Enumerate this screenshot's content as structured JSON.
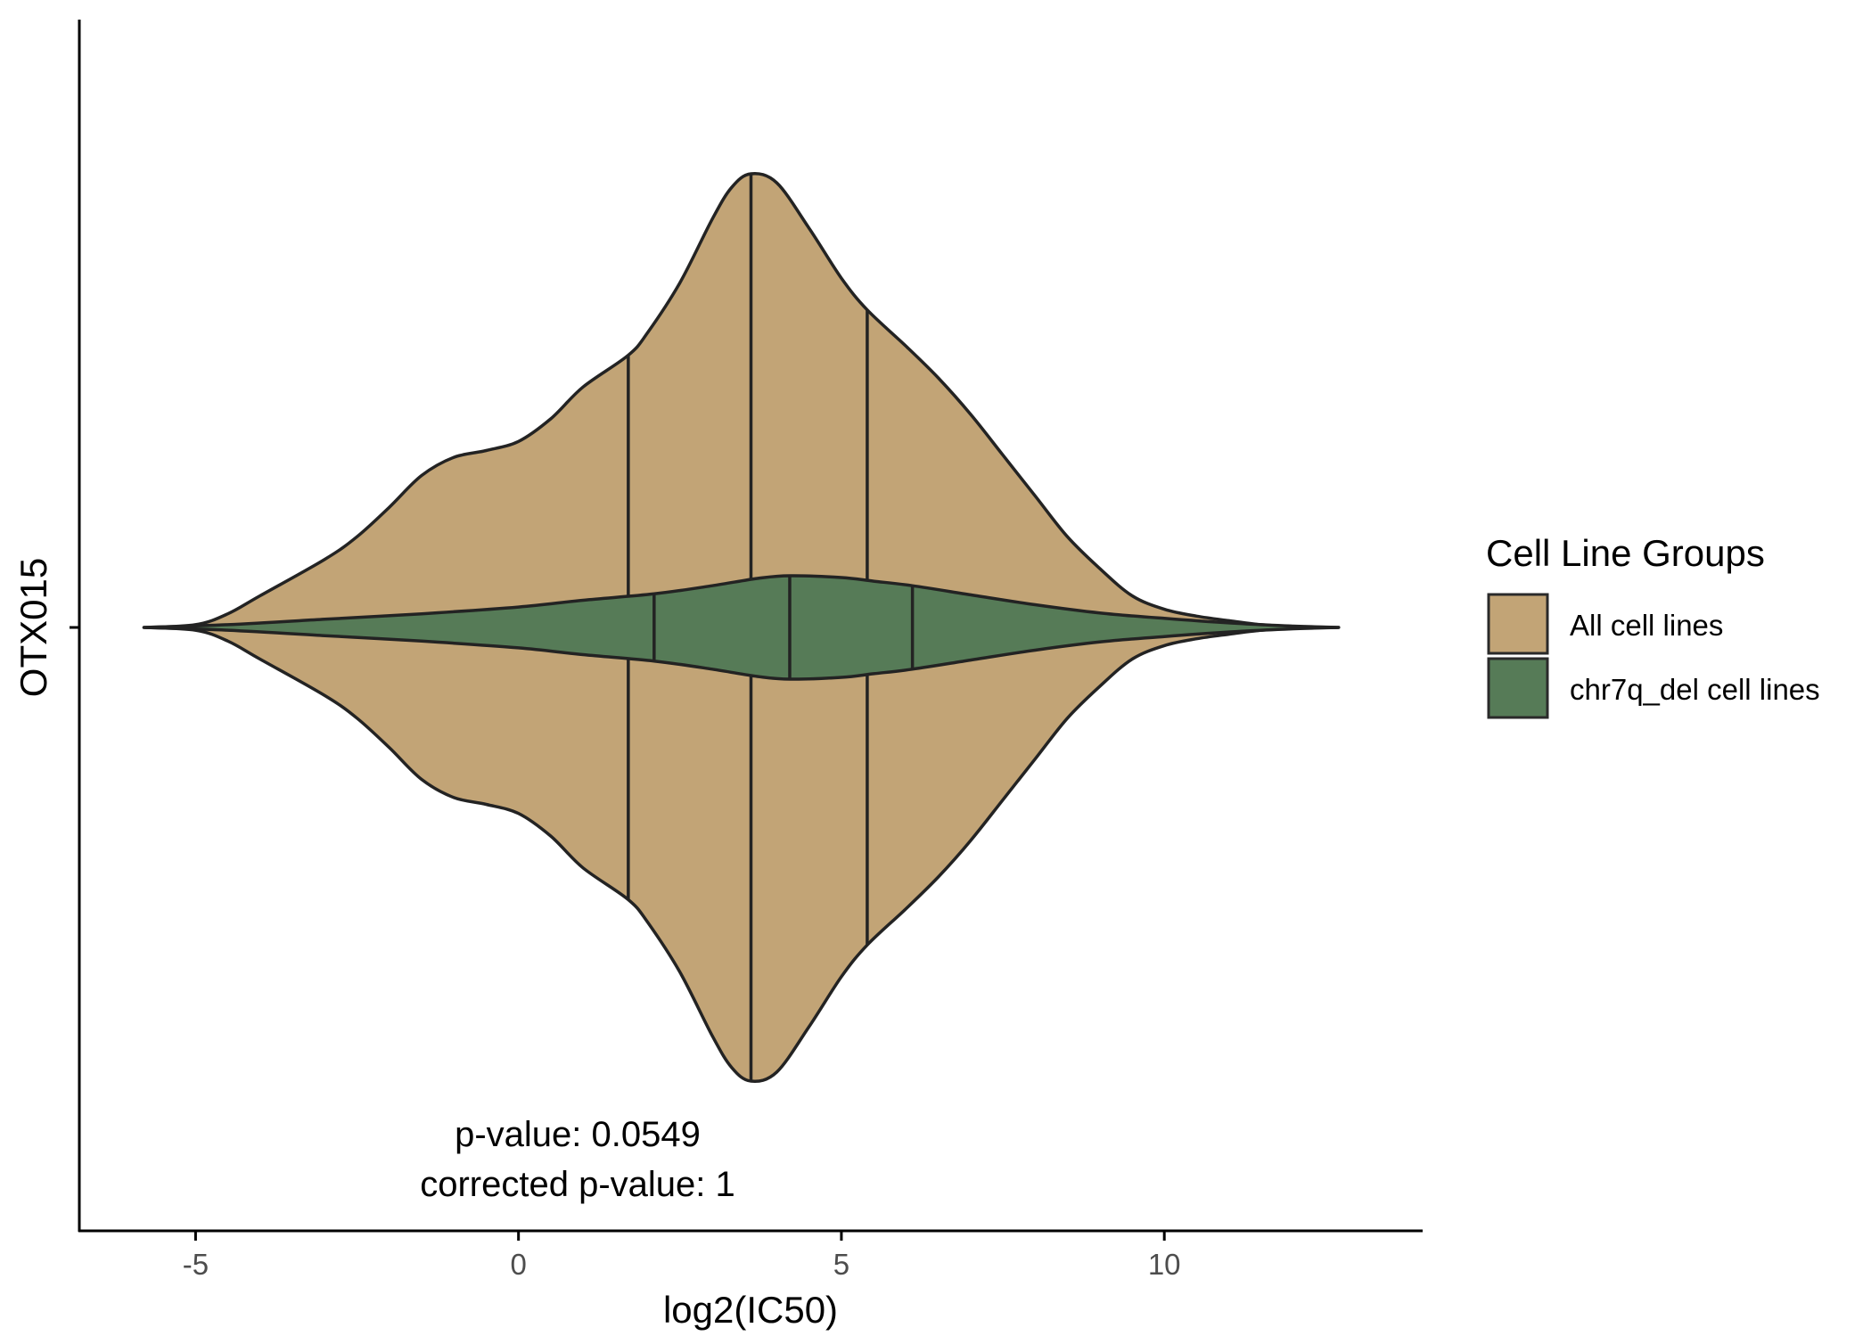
{
  "chart_data": {
    "type": "violin",
    "orientation": "horizontal",
    "title": "",
    "xlabel": "log2(IC50)",
    "ylabel": "",
    "category": "OTX015",
    "x_ticks": [
      -5,
      0,
      5,
      10
    ],
    "xlim": [
      -6.8,
      14.0
    ],
    "legend": {
      "title": "Cell Line Groups",
      "position": "right",
      "entries": [
        {
          "label": "All cell lines",
          "color": "#C2A476"
        },
        {
          "label": "chr7q_del cell lines",
          "color": "#567B57"
        }
      ]
    },
    "series": [
      {
        "name": "All cell lines",
        "color": "#C2A476",
        "quantiles": [
          1.7,
          3.6,
          5.4
        ],
        "max_half_width": 1.0,
        "density": [
          [
            -5.8,
            0.0
          ],
          [
            -5.0,
            0.006
          ],
          [
            -4.5,
            0.03
          ],
          [
            -4.0,
            0.07
          ],
          [
            -3.0,
            0.15
          ],
          [
            -2.5,
            0.2
          ],
          [
            -2.0,
            0.265
          ],
          [
            -1.5,
            0.335
          ],
          [
            -1.0,
            0.375
          ],
          [
            -0.5,
            0.39
          ],
          [
            0.0,
            0.41
          ],
          [
            0.5,
            0.46
          ],
          [
            1.0,
            0.53
          ],
          [
            1.7,
            0.6
          ],
          [
            2.0,
            0.65
          ],
          [
            2.5,
            0.76
          ],
          [
            3.0,
            0.9
          ],
          [
            3.3,
            0.97
          ],
          [
            3.6,
            1.0
          ],
          [
            4.0,
            0.98
          ],
          [
            4.5,
            0.88
          ],
          [
            5.0,
            0.77
          ],
          [
            5.4,
            0.7
          ],
          [
            6.0,
            0.62
          ],
          [
            6.5,
            0.55
          ],
          [
            7.0,
            0.47
          ],
          [
            7.5,
            0.38
          ],
          [
            8.0,
            0.29
          ],
          [
            8.5,
            0.2
          ],
          [
            9.0,
            0.13
          ],
          [
            9.5,
            0.07
          ],
          [
            10.0,
            0.04
          ],
          [
            10.5,
            0.025
          ],
          [
            11.0,
            0.015
          ],
          [
            11.5,
            0.006
          ],
          [
            12.0,
            0.002
          ],
          [
            12.7,
            0.0
          ]
        ]
      },
      {
        "name": "chr7q_del cell lines",
        "color": "#567B57",
        "quantiles": [
          2.1,
          4.2,
          6.1
        ],
        "max_half_width": 0.114,
        "density": [
          [
            -5.8,
            0.0
          ],
          [
            -4.5,
            0.006
          ],
          [
            -3.0,
            0.018
          ],
          [
            -1.5,
            0.03
          ],
          [
            0.0,
            0.045
          ],
          [
            1.0,
            0.06
          ],
          [
            2.1,
            0.074
          ],
          [
            3.0,
            0.092
          ],
          [
            3.7,
            0.108
          ],
          [
            4.2,
            0.114
          ],
          [
            5.0,
            0.11
          ],
          [
            5.5,
            0.102
          ],
          [
            6.1,
            0.092
          ],
          [
            7.0,
            0.072
          ],
          [
            8.0,
            0.05
          ],
          [
            9.0,
            0.032
          ],
          [
            10.0,
            0.02
          ],
          [
            11.0,
            0.01
          ],
          [
            12.0,
            0.003
          ],
          [
            12.7,
            0.0
          ]
        ]
      }
    ],
    "annotations": [
      {
        "text": "p-value: 0.0549"
      },
      {
        "text": "corrected p-value: 1"
      }
    ]
  }
}
